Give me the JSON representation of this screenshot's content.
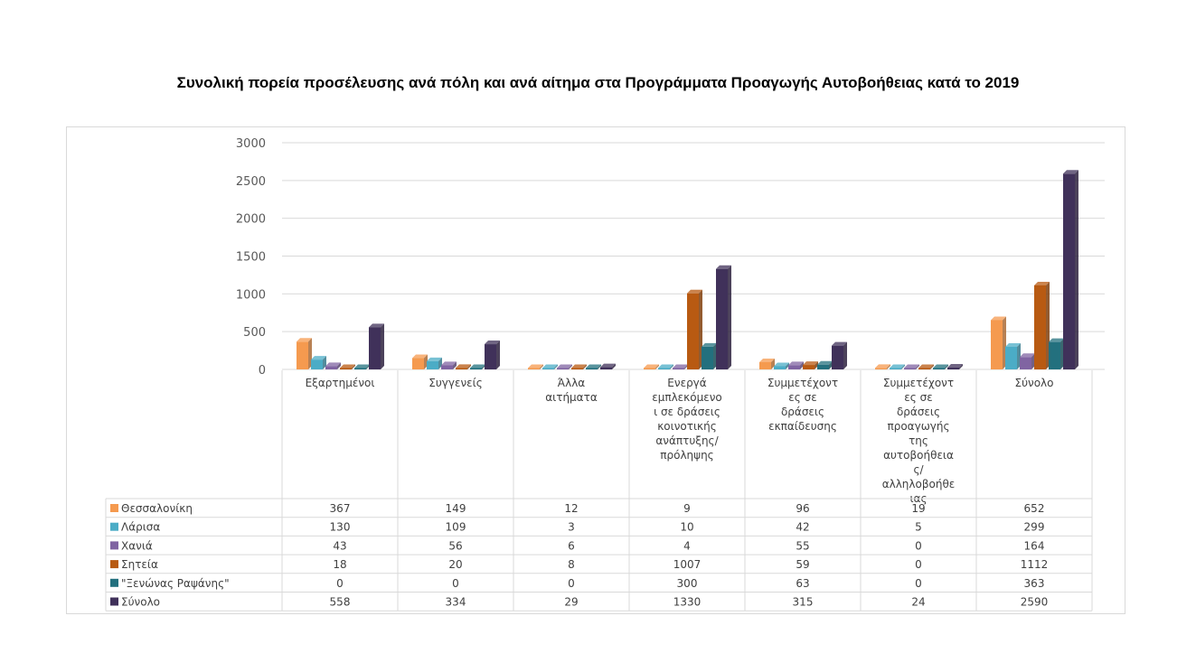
{
  "chart_data": {
    "type": "bar",
    "title": "Συνολική πορεία προσέλευσης ανά πόλη και ανά αίτημα στα Προγράμματα Προαγωγής Αυτοβοήθειας κατά το 2019",
    "categories": [
      [
        "Εξαρτημένοι"
      ],
      [
        "Συγγενείς"
      ],
      [
        "Άλλα",
        "αιτήματα"
      ],
      [
        "Ενεργά",
        "εμπλεκόμενο",
        "ι σε δράσεις",
        "κοινοτικής",
        "ανάπτυξης/",
        "πρόληψης"
      ],
      [
        "Συμμετέχοντ",
        "ες σε",
        "δράσεις",
        "εκπαίδευσης"
      ],
      [
        "Συμμετέχοντ",
        "ες σε",
        "δράσεις",
        "προαγωγής",
        "της",
        "αυτοβοήθεια",
        "ς/",
        "αλληλοβοήθε",
        "ιας"
      ],
      [
        "Σύνολο"
      ]
    ],
    "series": [
      {
        "name": "Θεσσαλονίκη",
        "color": "#f59a4f",
        "values": [
          367,
          149,
          12,
          9,
          96,
          19,
          652
        ]
      },
      {
        "name": "Λάρισα",
        "color": "#4bacc6",
        "values": [
          130,
          109,
          3,
          10,
          42,
          5,
          299
        ]
      },
      {
        "name": "Χανιά",
        "color": "#8064a2",
        "values": [
          43,
          56,
          6,
          4,
          55,
          0,
          164
        ]
      },
      {
        "name": "Σητεία",
        "color": "#b85a12",
        "values": [
          18,
          20,
          8,
          1007,
          59,
          0,
          1112
        ]
      },
      {
        "name": "\"Ξενώνας Ραψάνης\"",
        "color": "#23707e",
        "values": [
          0,
          0,
          0,
          300,
          63,
          0,
          363
        ]
      },
      {
        "name": "Σύνολο",
        "color": "#40315a",
        "values": [
          558,
          334,
          29,
          1330,
          315,
          24,
          2590
        ]
      }
    ],
    "yticks": [
      "0",
      "500",
      "1000",
      "1500",
      "2000",
      "2500",
      "3000"
    ],
    "ylim": [
      0,
      3000
    ],
    "grid": true,
    "legend": "data-table-below",
    "style": "3d-clustered-column"
  }
}
